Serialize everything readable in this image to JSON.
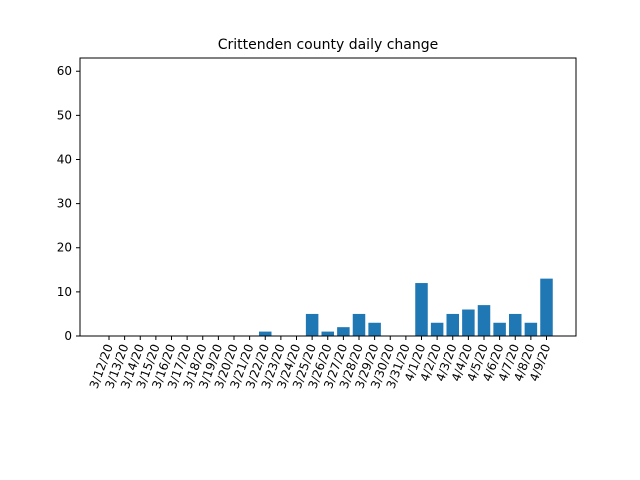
{
  "chart_data": {
    "type": "bar",
    "title": "Crittenden county daily change",
    "xlabel": "",
    "ylabel": "",
    "categories": [
      "3/12/20",
      "3/13/20",
      "3/14/20",
      "3/15/20",
      "3/16/20",
      "3/17/20",
      "3/18/20",
      "3/19/20",
      "3/20/20",
      "3/21/20",
      "3/22/20",
      "3/23/20",
      "3/24/20",
      "3/25/20",
      "3/26/20",
      "3/27/20",
      "3/28/20",
      "3/29/20",
      "3/30/20",
      "3/31/20",
      "4/1/20",
      "4/2/20",
      "4/3/20",
      "4/4/20",
      "4/5/20",
      "4/6/20",
      "4/7/20",
      "4/8/20",
      "4/9/20"
    ],
    "values": [
      0,
      0,
      0,
      0,
      0,
      0,
      0,
      0,
      0,
      0,
      1,
      0,
      0,
      5,
      1,
      2,
      5,
      3,
      0,
      0,
      12,
      3,
      5,
      6,
      7,
      3,
      5,
      3,
      13
    ],
    "ylim": [
      0,
      63
    ],
    "yticks": [
      0,
      10,
      20,
      30,
      40,
      50,
      60
    ],
    "bar_color": "#1f77b4",
    "grid": false
  }
}
